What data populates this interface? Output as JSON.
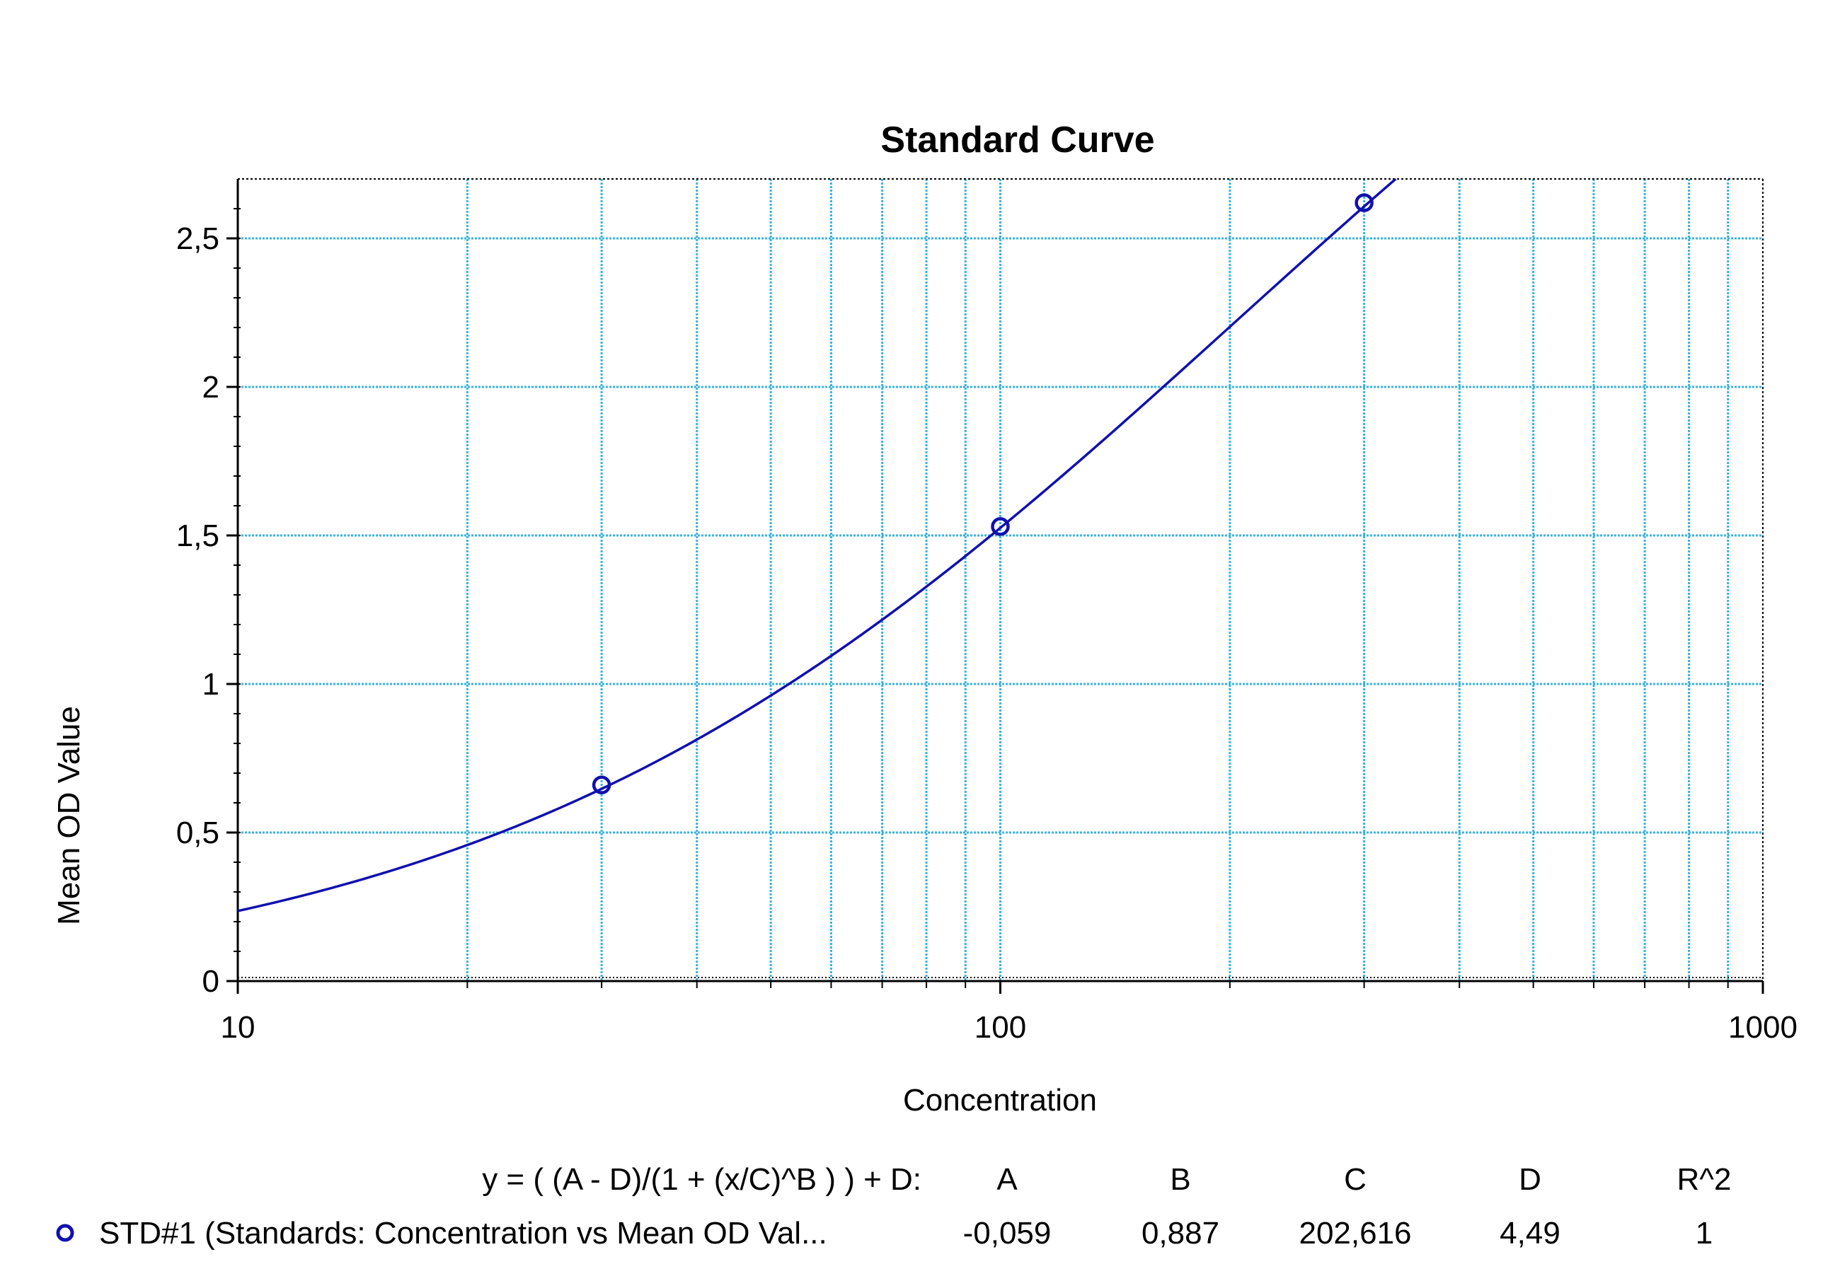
{
  "chart_data": {
    "type": "scatter",
    "title": "Standard Curve",
    "xlabel": "Concentration",
    "ylabel": "Mean OD Value",
    "x_scale": "log",
    "xlim": [
      10,
      1000
    ],
    "ylim": [
      0,
      2.7
    ],
    "x_ticks": [
      {
        "value": 10,
        "label": "10"
      },
      {
        "value": 100,
        "label": "100"
      },
      {
        "value": 1000,
        "label": "1000"
      }
    ],
    "y_ticks": [
      {
        "value": 0,
        "label": "0"
      },
      {
        "value": 0.5,
        "label": "0,5"
      },
      {
        "value": 1,
        "label": "1"
      },
      {
        "value": 1.5,
        "label": "1,5"
      },
      {
        "value": 2,
        "label": "2"
      },
      {
        "value": 2.5,
        "label": "2,5"
      }
    ],
    "grid": true,
    "series": [
      {
        "name": "STD#1 (Standards: Concentration vs Mean OD Val...",
        "color": "#1010b0",
        "marker": "circle",
        "points": [
          {
            "x": 30,
            "y": 0.66
          },
          {
            "x": 100,
            "y": 1.53
          },
          {
            "x": 300,
            "y": 2.62
          }
        ],
        "fit": {
          "model": "4PL",
          "A": -0.059,
          "B": 0.887,
          "C": 202.616,
          "D": 4.49,
          "R2": 1
        }
      }
    ],
    "fit_table": {
      "equation": "y = ( (A - D)/(1 + (x/C)^B ) ) + D:",
      "headers": [
        "A",
        "B",
        "C",
        "D",
        "R^2"
      ],
      "row_label": "STD#1 (Standards: Concentration vs Mean OD Val...",
      "values": [
        "-0,059",
        "0,887",
        "202,616",
        "4,49",
        "1"
      ]
    },
    "legend_placement": "bottom",
    "colors": {
      "grid": "#3ab3e0",
      "curve": "#1010b0",
      "axis": "#000000"
    }
  }
}
